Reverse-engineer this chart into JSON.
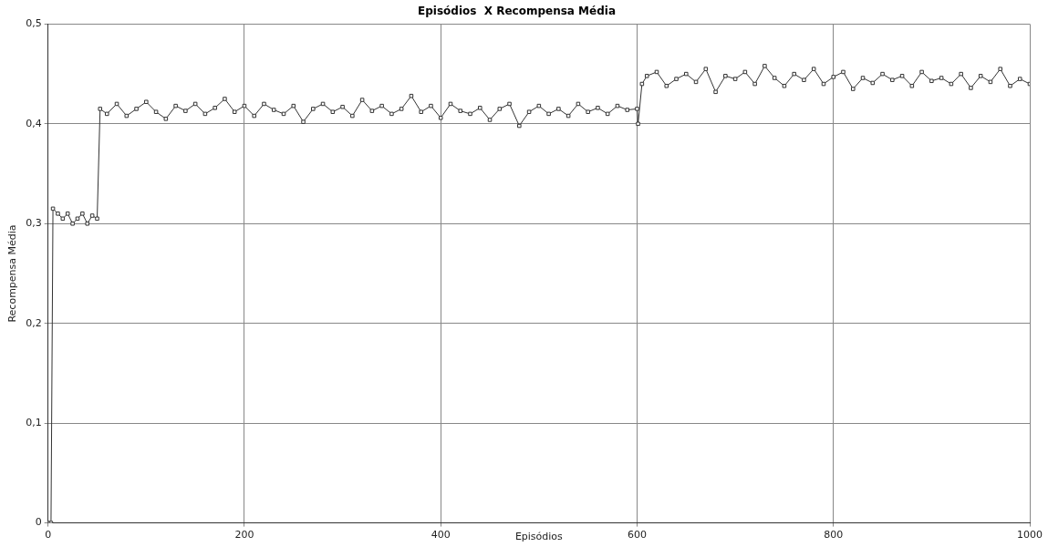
{
  "chart_data": {
    "type": "line",
    "title": "Episódios  X Recompensa Média",
    "xlabel": "Episódios",
    "ylabel": "Recompensa Média",
    "x": [
      0,
      3,
      5,
      10,
      15,
      20,
      25,
      30,
      35,
      40,
      45,
      50,
      53,
      60,
      70,
      80,
      90,
      100,
      110,
      120,
      130,
      140,
      150,
      160,
      170,
      180,
      190,
      200,
      210,
      220,
      230,
      240,
      250,
      260,
      270,
      280,
      290,
      300,
      310,
      320,
      330,
      340,
      350,
      360,
      370,
      380,
      390,
      400,
      410,
      420,
      430,
      440,
      450,
      460,
      470,
      480,
      490,
      500,
      510,
      520,
      530,
      540,
      550,
      560,
      570,
      580,
      590,
      600,
      601,
      605,
      610,
      620,
      630,
      640,
      650,
      660,
      670,
      680,
      690,
      700,
      710,
      720,
      730,
      740,
      750,
      760,
      770,
      780,
      790,
      800,
      810,
      820,
      830,
      840,
      850,
      860,
      870,
      880,
      890,
      900,
      910,
      920,
      930,
      940,
      950,
      960,
      970,
      980,
      990,
      1000
    ],
    "series": [
      {
        "color": "#333333",
        "values": [
          0,
          0,
          0.315,
          0.31,
          0.305,
          0.31,
          0.3,
          0.305,
          0.31,
          0.3,
          0.308,
          0.305,
          0.415,
          0.41,
          0.42,
          0.408,
          0.415,
          0.422,
          0.412,
          0.405,
          0.418,
          0.413,
          0.42,
          0.41,
          0.416,
          0.425,
          0.412,
          0.418,
          0.408,
          0.42,
          0.414,
          0.41,
          0.418,
          0.402,
          0.415,
          0.42,
          0.412,
          0.417,
          0.408,
          0.424,
          0.413,
          0.418,
          0.41,
          0.415,
          0.428,
          0.412,
          0.418,
          0.406,
          0.42,
          0.413,
          0.41,
          0.416,
          0.404,
          0.415,
          0.42,
          0.398,
          0.412,
          0.418,
          0.41,
          0.415,
          0.408,
          0.42,
          0.412,
          0.416,
          0.41,
          0.418,
          0.414,
          0.415,
          0.4,
          0.44,
          0.448,
          0.452,
          0.438,
          0.445,
          0.45,
          0.442,
          0.455,
          0.432,
          0.448,
          0.445,
          0.452,
          0.44,
          0.458,
          0.446,
          0.438,
          0.45,
          0.444,
          0.455,
          0.44,
          0.447,
          0.452,
          0.435,
          0.446,
          0.441,
          0.45,
          0.444,
          0.448,
          0.438,
          0.452,
          0.443,
          0.446,
          0.44,
          0.45,
          0.436,
          0.448,
          0.442,
          0.455,
          0.438,
          0.445,
          0.44
        ]
      }
    ],
    "xlim": [
      0,
      1000
    ],
    "xticks": [
      0,
      200,
      400,
      600,
      800,
      1000
    ],
    "ylim": [
      0,
      0.5
    ],
    "yticks": [
      0,
      {
        "value": 0.1,
        "label": "0,1"
      },
      {
        "value": 0.2,
        "label": "0,2"
      },
      {
        "value": 0.3,
        "label": "0,3"
      },
      {
        "value": 0.4,
        "label": "0,4"
      },
      {
        "value": 0.5,
        "label": "0,5"
      }
    ],
    "grid": true,
    "marker": "square",
    "line_style": "solid"
  }
}
